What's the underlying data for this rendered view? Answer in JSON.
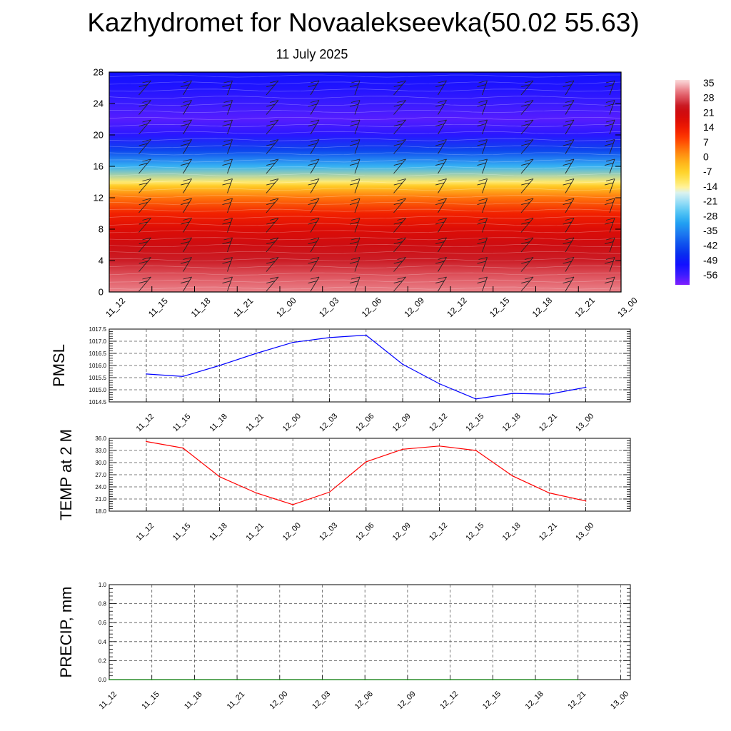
{
  "header": {
    "title": "Kazhydromet for Novaalekseevka(50.02 55.63)",
    "subtitle": "11 July 2025"
  },
  "chart_data": [
    {
      "type": "heatmap",
      "title": "",
      "xlabel": "",
      "ylabel": "",
      "x_ticks": [
        "11_12",
        "11_15",
        "11_18",
        "11_21",
        "12_00",
        "12_03",
        "12_06",
        "12_09",
        "12_12",
        "12_15",
        "12_18",
        "12_21",
        "13_00"
      ],
      "y_ticks": [
        "0",
        "4",
        "8",
        "12",
        "16",
        "20",
        "24",
        "28"
      ],
      "ylim": [
        0,
        28
      ],
      "colorbar_labels": [
        "35",
        "28",
        "21",
        "14",
        "7",
        "0",
        "-7",
        "-14",
        "-21",
        "-28",
        "-35",
        "-42",
        "-49",
        "-56"
      ],
      "colorbar_range": [
        -60,
        38
      ],
      "level_temperature_profile": {
        "levels": [
          0,
          2,
          4,
          6,
          8,
          10,
          12,
          13.5,
          14,
          16,
          18,
          20,
          22,
          24,
          26,
          28
        ],
        "temperatures": [
          33,
          30,
          26,
          23,
          19,
          14,
          5,
          -5,
          -11,
          -28,
          -42,
          -53,
          -57,
          -55,
          -52,
          -50
        ]
      },
      "wind_barbs": true
    },
    {
      "type": "line",
      "ylabel": "PMSL",
      "x_ticks": [
        "11_12",
        "11_15",
        "11_18",
        "11_21",
        "12_00",
        "12_03",
        "12_06",
        "12_09",
        "12_12",
        "12_15",
        "12_18",
        "12_21",
        "13_00"
      ],
      "y_ticks": [
        "1014.5",
        "1015.0",
        "1015.5",
        "1016.0",
        "1016.5",
        "1017.0",
        "1017.5"
      ],
      "ylim": [
        1014.5,
        1017.5
      ],
      "grid": true,
      "series": [
        {
          "values": [
            1015.65,
            1015.55,
            1016.0,
            1016.5,
            1016.95,
            1017.15,
            1017.25,
            1016.05,
            1015.25,
            1014.62,
            1014.85,
            1014.82,
            1015.1
          ],
          "color": "#0000ff"
        }
      ]
    },
    {
      "type": "line",
      "ylabel": "TEMP at 2 M",
      "x_ticks": [
        "11_12",
        "11_15",
        "11_18",
        "11_21",
        "12_00",
        "12_03",
        "12_06",
        "12_09",
        "12_12",
        "12_15",
        "12_18",
        "12_21",
        "13_00"
      ],
      "y_ticks": [
        "18.0",
        "21.0",
        "24.0",
        "27.0",
        "30.0",
        "33.0",
        "36.0"
      ],
      "ylim": [
        18,
        36
      ],
      "grid": true,
      "series": [
        {
          "values": [
            35.2,
            33.6,
            26.5,
            22.5,
            19.6,
            22.7,
            30.2,
            33.3,
            34.1,
            33.0,
            26.7,
            22.5,
            20.5
          ],
          "color": "#ff0000"
        }
      ]
    },
    {
      "type": "line",
      "ylabel": "PRECIP, mm",
      "x_ticks": [
        "11_12",
        "11_15",
        "11_18",
        "11_21",
        "12_00",
        "12_03",
        "12_06",
        "12_09",
        "12_12",
        "12_15",
        "12_18",
        "12_21",
        "13_00"
      ],
      "y_ticks": [
        "0.0",
        "0.2",
        "0.4",
        "0.6",
        "0.8",
        "1.0"
      ],
      "ylim": [
        0,
        1
      ],
      "grid": true,
      "series": [
        {
          "values": [
            0,
            0,
            0,
            0,
            0,
            0,
            0,
            0,
            0,
            0,
            0,
            0
          ],
          "color": "#007700"
        }
      ]
    }
  ]
}
